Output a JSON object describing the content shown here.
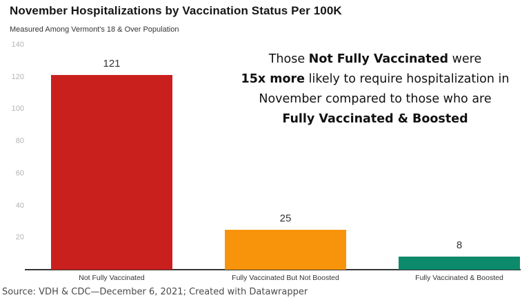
{
  "header": {
    "title": "November Hospitalizations by Vaccination Status Per 100K",
    "subtitle": "Measured Among Vermont's 18 & Over Population"
  },
  "annotation": {
    "lines": [
      [
        {
          "text": "Those ",
          "bold": false
        },
        {
          "text": "Not Fully Vaccinated",
          "bold": true
        },
        {
          "text": " were",
          "bold": false
        }
      ],
      [
        {
          "text": "15x more",
          "bold": true
        },
        {
          "text": " likely to require hospitalization in",
          "bold": false
        }
      ],
      [
        {
          "text": "November compared to those who are",
          "bold": false
        }
      ],
      [
        {
          "text": "Fully Vaccinated & Boosted",
          "bold": true
        }
      ]
    ]
  },
  "chart_data": {
    "type": "bar",
    "title": "November Hospitalizations by Vaccination Status Per 100K",
    "subtitle": "Measured Among Vermont's 18 & Over Population",
    "categories": [
      "Not Fully Vaccinated",
      "Fully Vaccinated But Not Boosted",
      "Fully Vaccinated & Boosted"
    ],
    "values": [
      121,
      25,
      8
    ],
    "value_labels": [
      "121",
      "25",
      "8"
    ],
    "bar_colors": [
      "#c9201e",
      "#f8940c",
      "#0d8a6c"
    ],
    "xlabel": "",
    "ylabel": "",
    "ylim": [
      0,
      140
    ],
    "yticks": [
      20,
      40,
      60,
      80,
      100,
      120,
      140
    ],
    "grid": false,
    "legend": "none",
    "axis_line_color": "#333333",
    "tick_label_color": "#b3b3b3"
  },
  "footer": {
    "source": "Source: VDH & CDC—December 6, 2021; Created with Datawrapper"
  }
}
